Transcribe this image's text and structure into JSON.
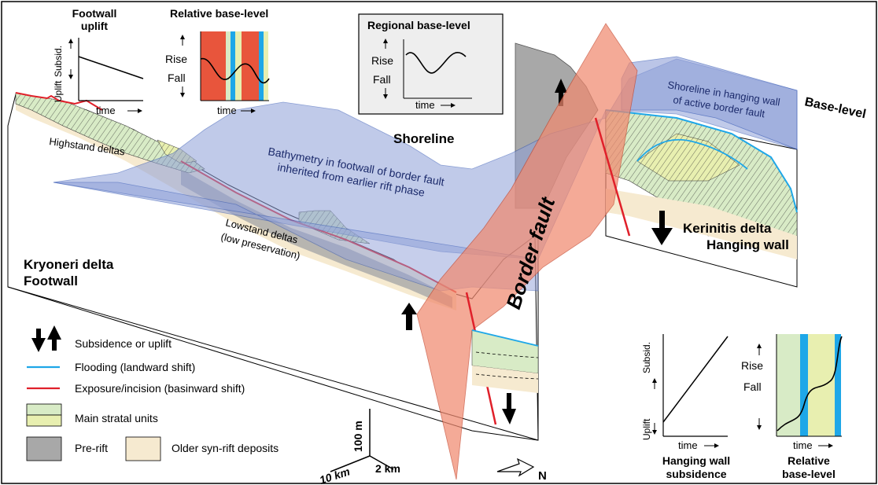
{
  "colors": {
    "base_level_plane": "#8e9fd8",
    "fault_plane": "#f08a70",
    "stratal_green": "#d8ebc6",
    "stratal_yellow": "#e8efb0",
    "pre_rift": "#a8a8a8",
    "older_syn_rift": "#f6ead0",
    "flooding": "#1ea7e8",
    "exposure": "#e0202a",
    "lowstand_bar": "#e8553c",
    "inset_box": "#eeeeee"
  },
  "footwall_uplift": {
    "title_line1": "Footwall",
    "title_line2": "uplift",
    "y_subsid": "Subsid.",
    "y_uplift": "Uplift",
    "x_label": "time"
  },
  "relative_base_level_top": {
    "title": "Relative base-level",
    "rise": "Rise",
    "fall": "Fall",
    "x_label": "time"
  },
  "regional_base_level": {
    "title": "Regional base-level",
    "rise": "Rise",
    "fall": "Fall",
    "x_label": "time"
  },
  "block": {
    "shoreline": "Shoreline",
    "base_level": "Base-level",
    "shoreline_hw_1": "Shoreline in hanging wall",
    "shoreline_hw_2": "of active border fault",
    "bathy_1": "Bathymetry in footwall of border fault",
    "bathy_2": "inherited from earlier rift phase",
    "highstand": "Highstand deltas",
    "lowstand_1": "Lowstand deltas",
    "lowstand_2": "(low preservation)",
    "border_fault": "Border fault",
    "kerinitis_1": "Kerinitis delta",
    "kerinitis_2": "Hanging wall",
    "kryoneri_1": "Kryoneri delta",
    "kryoneri_2": "Footwall"
  },
  "legend": {
    "subsidence_uplift": "Subsidence or uplift",
    "flooding": "Flooding (landward shift)",
    "exposure": "Exposure/incision (basinward shift)",
    "stratal": "Main stratal units",
    "pre_rift": "Pre-rift",
    "older_syn_rift": "Older syn-rift deposits"
  },
  "scale": {
    "vertical": "100 m",
    "horizontal_1": "10 km",
    "horizontal_2": "2 km",
    "north": "N"
  },
  "hw_subsidence": {
    "y_subsid": "Subsid.",
    "y_uplift": "Uplift",
    "x_label": "time",
    "caption_1": "Hanging wall",
    "caption_2": "subsidence"
  },
  "relative_base_level_bottom": {
    "rise": "Rise",
    "fall": "Fall",
    "x_label": "time",
    "caption_1": "Relative",
    "caption_2": "base-level"
  }
}
